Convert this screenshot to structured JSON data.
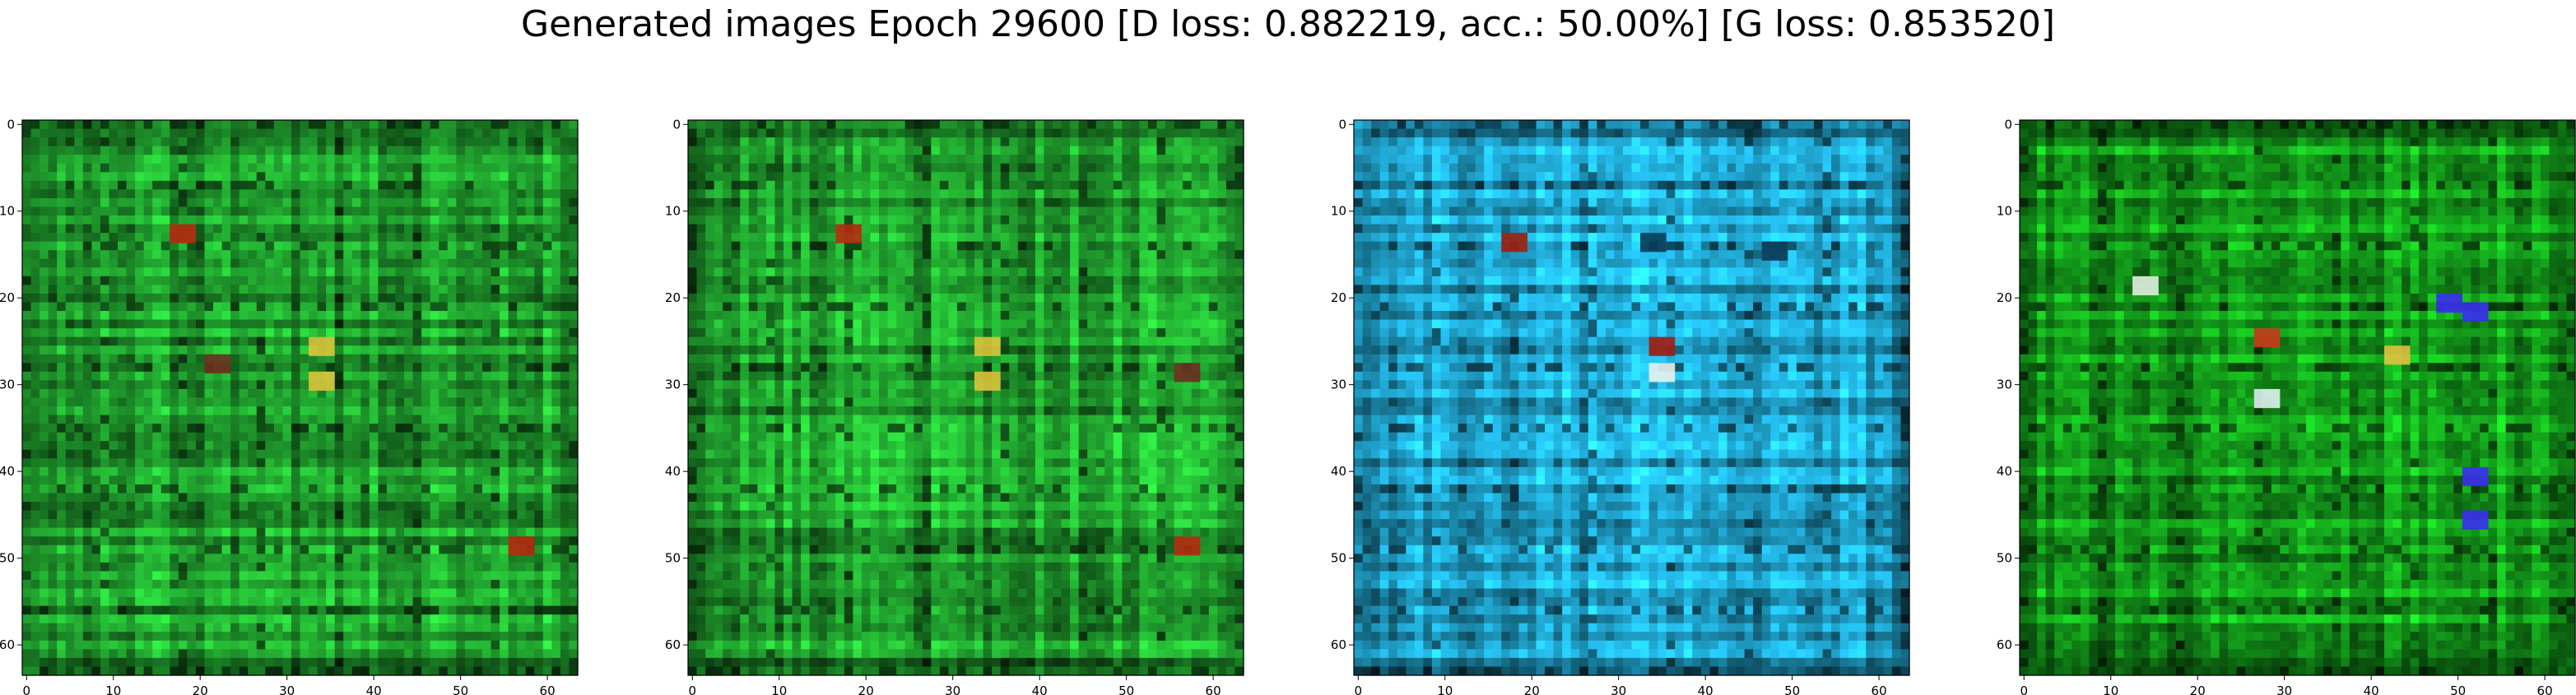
{
  "title": "Generated images Epoch 29600 [D loss: 0.882219, acc.: 50.00%] [G loss: 0.853520]",
  "chart_data": [
    {
      "type": "image",
      "panel": 1,
      "xlim": [
        0,
        63
      ],
      "ylim": [
        0,
        63
      ],
      "x_ticks": [
        0,
        10,
        20,
        30,
        40,
        50,
        60
      ],
      "y_ticks": [
        0,
        10,
        20,
        30,
        40,
        50,
        60
      ],
      "y_inverted": true,
      "base_color": "#1f9a2c",
      "dominant_colors": [
        "#1f9a2c",
        "#0c6b12",
        "#3ac24a",
        "#b52a10",
        "#d9c23a"
      ]
    },
    {
      "type": "image",
      "panel": 2,
      "xlim": [
        0,
        63
      ],
      "ylim": [
        0,
        63
      ],
      "x_ticks": [
        0,
        10,
        20,
        30,
        40,
        50,
        60
      ],
      "y_ticks": [
        0,
        10,
        20,
        30,
        40,
        50,
        60
      ],
      "y_inverted": true,
      "base_color": "#1f9a2c",
      "dominant_colors": [
        "#1f9a2c",
        "#0c6b12",
        "#3ac24a",
        "#b52a10",
        "#d9c23a"
      ]
    },
    {
      "type": "image",
      "panel": 3,
      "xlim": [
        0,
        63
      ],
      "ylim": [
        0,
        63
      ],
      "x_ticks": [
        0,
        10,
        20,
        30,
        40,
        50,
        60
      ],
      "y_ticks": [
        0,
        10,
        20,
        30,
        40,
        50,
        60
      ],
      "y_inverted": true,
      "base_color": "#1fa0c8",
      "dominant_colors": [
        "#1fa0c8",
        "#0a5a7e",
        "#55c8e6",
        "#a01e10",
        "#e8f0f0"
      ]
    },
    {
      "type": "image",
      "panel": 4,
      "xlim": [
        0,
        63
      ],
      "ylim": [
        0,
        63
      ],
      "x_ticks": [
        0,
        10,
        20,
        30,
        40,
        50,
        60
      ],
      "y_ticks": [
        0,
        10,
        20,
        30,
        40,
        50,
        60
      ],
      "y_inverted": true,
      "base_color": "#139a1a",
      "dominant_colors": [
        "#139a1a",
        "#064f0a",
        "#2dc43a",
        "#3a2cf0",
        "#c83a1a",
        "#e0c040"
      ]
    }
  ]
}
